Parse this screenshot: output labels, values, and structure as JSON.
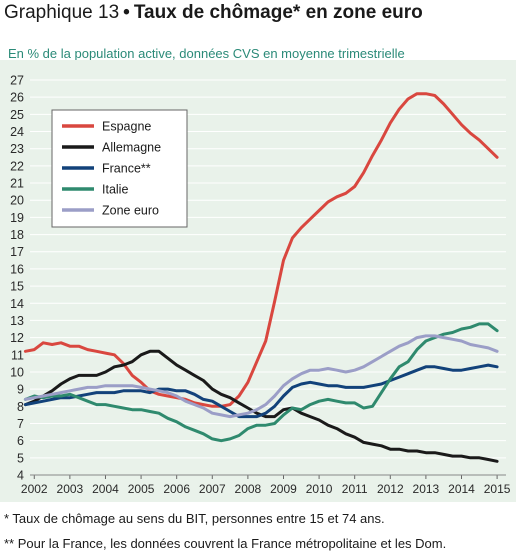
{
  "header": {
    "number": "Graphique 13",
    "separator": "•",
    "title": "Taux de chômage* en zone euro",
    "subtitle": "En % de la population active, données CVS en moyenne trimestrielle"
  },
  "footnotes": [
    "* Taux de chômage au sens du BIT, personnes entre 15 et 74 ans.",
    "** Pour la France, les données couvrent la France métropolitaine et les Dom."
  ],
  "chart_data": {
    "type": "line",
    "ylim": [
      4,
      27
    ],
    "xlim": [
      2002,
      2015.25
    ],
    "x_ticks": [
      "2002",
      "2003",
      "2004",
      "2005",
      "2006",
      "2007",
      "2008",
      "2009",
      "2010",
      "2011",
      "2012",
      "2013",
      "2014",
      "2015"
    ],
    "y_ticks": [
      4,
      5,
      6,
      7,
      8,
      9,
      10,
      11,
      12,
      13,
      14,
      15,
      16,
      17,
      18,
      19,
      20,
      21,
      22,
      23,
      24,
      25,
      26,
      27
    ],
    "grid": true,
    "legend_position": "top-left",
    "series": [
      {
        "name": "Espagne",
        "color": "#d9473f",
        "x": [
          2001.75,
          2002,
          2002.25,
          2002.5,
          2002.75,
          2003,
          2003.25,
          2003.5,
          2003.75,
          2004,
          2004.25,
          2004.5,
          2004.75,
          2005,
          2005.25,
          2005.5,
          2005.75,
          2006,
          2006.25,
          2006.5,
          2006.75,
          2007,
          2007.25,
          2007.5,
          2007.75,
          2008,
          2008.25,
          2008.5,
          2008.75,
          2009,
          2009.25,
          2009.5,
          2009.75,
          2010,
          2010.25,
          2010.5,
          2010.75,
          2011,
          2011.25,
          2011.5,
          2011.75,
          2012,
          2012.25,
          2012.5,
          2012.75,
          2013,
          2013.25,
          2013.5,
          2013.75,
          2014,
          2014.25,
          2014.5,
          2014.75,
          2015
        ],
        "y": [
          11.2,
          11.3,
          11.7,
          11.6,
          11.7,
          11.5,
          11.5,
          11.3,
          11.2,
          11.1,
          11.0,
          10.5,
          9.8,
          9.4,
          8.9,
          8.7,
          8.6,
          8.5,
          8.4,
          8.2,
          8.1,
          8.0,
          8.0,
          8.1,
          8.6,
          9.4,
          10.6,
          11.8,
          14.1,
          16.5,
          17.8,
          18.4,
          18.9,
          19.4,
          19.9,
          20.2,
          20.4,
          20.8,
          21.6,
          22.6,
          23.5,
          24.5,
          25.3,
          25.9,
          26.2,
          26.2,
          26.1,
          25.6,
          25.0,
          24.4,
          23.9,
          23.5,
          23.0,
          22.5
        ]
      },
      {
        "name": "Allemagne",
        "color": "#1a1a1a",
        "x": [
          2001.75,
          2002,
          2002.25,
          2002.5,
          2002.75,
          2003,
          2003.25,
          2003.5,
          2003.75,
          2004,
          2004.25,
          2004.5,
          2004.75,
          2005,
          2005.25,
          2005.5,
          2005.75,
          2006,
          2006.25,
          2006.5,
          2006.75,
          2007,
          2007.25,
          2007.5,
          2007.75,
          2008,
          2008.25,
          2008.5,
          2008.75,
          2009,
          2009.25,
          2009.5,
          2009.75,
          2010,
          2010.25,
          2010.5,
          2010.75,
          2011,
          2011.25,
          2011.5,
          2011.75,
          2012,
          2012.25,
          2012.5,
          2012.75,
          2013,
          2013.25,
          2013.5,
          2013.75,
          2014,
          2014.25,
          2014.5,
          2014.75,
          2015
        ],
        "y": [
          8.1,
          8.3,
          8.6,
          8.9,
          9.3,
          9.6,
          9.8,
          9.8,
          9.8,
          10.0,
          10.3,
          10.4,
          10.6,
          11.0,
          11.2,
          11.2,
          10.8,
          10.4,
          10.1,
          9.8,
          9.5,
          9.0,
          8.7,
          8.5,
          8.2,
          7.9,
          7.6,
          7.4,
          7.4,
          7.8,
          7.9,
          7.6,
          7.4,
          7.2,
          6.9,
          6.7,
          6.4,
          6.2,
          5.9,
          5.8,
          5.7,
          5.5,
          5.5,
          5.4,
          5.4,
          5.3,
          5.3,
          5.2,
          5.1,
          5.1,
          5.0,
          5.0,
          4.9,
          4.8
        ]
      },
      {
        "name": "France**",
        "color": "#12427a",
        "x": [
          2001.75,
          2002,
          2002.25,
          2002.5,
          2002.75,
          2003,
          2003.25,
          2003.5,
          2003.75,
          2004,
          2004.25,
          2004.5,
          2004.75,
          2005,
          2005.25,
          2005.5,
          2005.75,
          2006,
          2006.25,
          2006.5,
          2006.75,
          2007,
          2007.25,
          2007.5,
          2007.75,
          2008,
          2008.25,
          2008.5,
          2008.75,
          2009,
          2009.25,
          2009.5,
          2009.75,
          2010,
          2010.25,
          2010.5,
          2010.75,
          2011,
          2011.25,
          2011.5,
          2011.75,
          2012,
          2012.25,
          2012.5,
          2012.75,
          2013,
          2013.25,
          2013.5,
          2013.75,
          2014,
          2014.25,
          2014.5,
          2014.75,
          2015
        ],
        "y": [
          8.1,
          8.2,
          8.3,
          8.4,
          8.5,
          8.5,
          8.6,
          8.7,
          8.8,
          8.8,
          8.8,
          8.9,
          8.9,
          8.9,
          8.8,
          9.0,
          9.0,
          8.9,
          8.9,
          8.7,
          8.4,
          8.3,
          8.0,
          7.7,
          7.4,
          7.4,
          7.4,
          7.6,
          8.0,
          8.6,
          9.1,
          9.3,
          9.4,
          9.3,
          9.2,
          9.2,
          9.1,
          9.1,
          9.1,
          9.2,
          9.3,
          9.5,
          9.7,
          9.9,
          10.1,
          10.3,
          10.3,
          10.2,
          10.1,
          10.1,
          10.2,
          10.3,
          10.4,
          10.3
        ]
      },
      {
        "name": "Italie",
        "color": "#2f8a6e",
        "x": [
          2001.75,
          2002,
          2002.25,
          2002.5,
          2002.75,
          2003,
          2003.25,
          2003.5,
          2003.75,
          2004,
          2004.25,
          2004.5,
          2004.75,
          2005,
          2005.25,
          2005.5,
          2005.75,
          2006,
          2006.25,
          2006.5,
          2006.75,
          2007,
          2007.25,
          2007.5,
          2007.75,
          2008,
          2008.25,
          2008.5,
          2008.75,
          2009,
          2009.25,
          2009.5,
          2009.75,
          2010,
          2010.25,
          2010.5,
          2010.75,
          2011,
          2011.25,
          2011.5,
          2011.75,
          2012,
          2012.25,
          2012.5,
          2012.75,
          2013,
          2013.25,
          2013.5,
          2013.75,
          2014,
          2014.25,
          2014.5,
          2014.75,
          2015
        ],
        "y": [
          8.4,
          8.6,
          8.5,
          8.6,
          8.6,
          8.7,
          8.5,
          8.3,
          8.1,
          8.1,
          8.0,
          7.9,
          7.8,
          7.8,
          7.7,
          7.6,
          7.3,
          7.1,
          6.8,
          6.6,
          6.4,
          6.1,
          6.0,
          6.1,
          6.3,
          6.7,
          6.9,
          6.9,
          7.0,
          7.5,
          7.9,
          7.8,
          8.1,
          8.3,
          8.4,
          8.3,
          8.2,
          8.2,
          7.9,
          8.0,
          8.8,
          9.6,
          10.3,
          10.6,
          11.3,
          11.8,
          12.0,
          12.2,
          12.3,
          12.5,
          12.6,
          12.8,
          12.8,
          12.4
        ]
      },
      {
        "name": "Zone euro",
        "color": "#9b9ec7",
        "x": [
          2001.75,
          2002,
          2002.25,
          2002.5,
          2002.75,
          2003,
          2003.25,
          2003.5,
          2003.75,
          2004,
          2004.25,
          2004.5,
          2004.75,
          2005,
          2005.25,
          2005.5,
          2005.75,
          2006,
          2006.25,
          2006.5,
          2006.75,
          2007,
          2007.25,
          2007.5,
          2007.75,
          2008,
          2008.25,
          2008.5,
          2008.75,
          2009,
          2009.25,
          2009.5,
          2009.75,
          2010,
          2010.25,
          2010.5,
          2010.75,
          2011,
          2011.25,
          2011.5,
          2011.75,
          2012,
          2012.25,
          2012.5,
          2012.75,
          2013,
          2013.25,
          2013.5,
          2013.75,
          2014,
          2014.25,
          2014.5,
          2014.75,
          2015
        ],
        "y": [
          8.4,
          8.5,
          8.6,
          8.7,
          8.8,
          8.9,
          9.0,
          9.1,
          9.1,
          9.2,
          9.2,
          9.2,
          9.2,
          9.1,
          9.0,
          8.9,
          8.8,
          8.6,
          8.3,
          8.1,
          7.9,
          7.6,
          7.5,
          7.4,
          7.5,
          7.6,
          7.8,
          8.1,
          8.6,
          9.2,
          9.6,
          9.9,
          10.1,
          10.1,
          10.2,
          10.1,
          10.0,
          10.1,
          10.3,
          10.6,
          10.9,
          11.2,
          11.5,
          11.7,
          12.0,
          12.1,
          12.1,
          12.0,
          11.9,
          11.8,
          11.6,
          11.5,
          11.4,
          11.2
        ]
      }
    ]
  }
}
